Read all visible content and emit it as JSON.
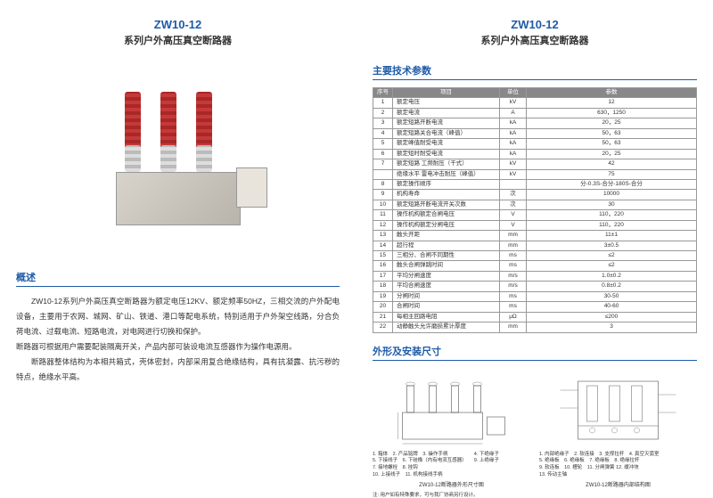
{
  "product": {
    "model": "ZW10-12",
    "name": "系列户外高压真空断路器"
  },
  "sections": {
    "overview": "概述",
    "specs": "主要技术参数",
    "dimensions": "外形及安装尺寸"
  },
  "description": {
    "p1": "ZW10-12系列户外高压真空断路器为额定电压12KV、额定频率50HZ，三相交流的户外配电设备，主要用于农网、城网、矿山、铁道、港口等配电系统，特别适用于户外架空线路，分合负荷电流、过载电流、短路电流，对电网进行切换和保护。",
    "p2": "断路器可根据用户需要配装隔离开关，产品内部可装设电流互感器作为操作电源用。",
    "p3": "断路器整体结构为本相共箱式，壳体密封，内部采用复合绝缘结构，具有抗凝露、抗污秽的特点，绝缘水平高。"
  },
  "spec_table": {
    "headers": [
      "序号",
      "项目",
      "单位",
      "参数"
    ],
    "rows": [
      [
        "1",
        "额定电压",
        "kV",
        "12"
      ],
      [
        "2",
        "额定电流",
        "A",
        "630，1250"
      ],
      [
        "3",
        "额定短路开断电流",
        "kA",
        "20，25"
      ],
      [
        "4",
        "额定短路关合电流（峰值）",
        "kA",
        "50，63"
      ],
      [
        "5",
        "额定峰值耐受电流",
        "kA",
        "50，63"
      ],
      [
        "6",
        "额定短时耐受电流",
        "kA",
        "20，25"
      ],
      [
        "7",
        "额定短路  工频耐压（干式）",
        "kV",
        "42"
      ],
      [
        "",
        "绝缘水平  雷电冲击耐压（峰值）",
        "kV",
        "75"
      ],
      [
        "8",
        "额定操作顺序",
        "",
        "分-0.3S-合分-180S-合分"
      ],
      [
        "9",
        "机构寿命",
        "次",
        "10000"
      ],
      [
        "10",
        "额定短路开断电流开关次数",
        "次",
        "30"
      ],
      [
        "11",
        "操作机构额定合闸电压",
        "V",
        "110，220"
      ],
      [
        "12",
        "操作机构额定分闸电压",
        "V",
        "110，220"
      ],
      [
        "13",
        "触头开距",
        "mm",
        "11±1"
      ],
      [
        "14",
        "超行程",
        "mm",
        "3±0.5"
      ],
      [
        "15",
        "三相分、合闸不同期性",
        "ms",
        "≤2"
      ],
      [
        "16",
        "触头合闸弹跳时间",
        "ms",
        "≤2"
      ],
      [
        "17",
        "平均分闸速度",
        "m/s",
        "1.0±0.2"
      ],
      [
        "18",
        "平均合闸速度",
        "m/s",
        "0.8±0.2"
      ],
      [
        "19",
        "分闸时间",
        "ms",
        "30-50"
      ],
      [
        "20",
        "合闸时间",
        "ms",
        "40-60"
      ],
      [
        "21",
        "每相主回路电阻",
        "μΩ",
        "≤200"
      ],
      [
        "22",
        "动静触头允许磨损累计厚度",
        "mm",
        "3"
      ]
    ]
  },
  "diagram_left": {
    "labels": "1. 箱体　2. 产品铭牌　3. 操作手柄\n5. 下接线子　6. 下硅橡（内有电流互感器）\n7. 接地螺栓　8. 挂钩\n10. 上接线子　11. 机构接线手柄",
    "label4": "4. 下绝缘子",
    "label9": "9. 上绝缘子",
    "note": "注: 用户如有特殊要求，可与我厂协商另行设计。",
    "title": "ZW10-12断路器外形尺寸图"
  },
  "diagram_right": {
    "labels": "1. 内部绝缘子　2. 软连接　3. 支撑拉杆　4. 真空灭弧室\n5. 绝缘板　6. 绝缘板　7. 绝缘板　8. 绝缘拉杆\n9. 软连板　10. 槽轮　11. 分闸弹簧 12. 缓冲块\n13. 传动主轴",
    "title": "ZW10-12断路器内部结构图"
  }
}
